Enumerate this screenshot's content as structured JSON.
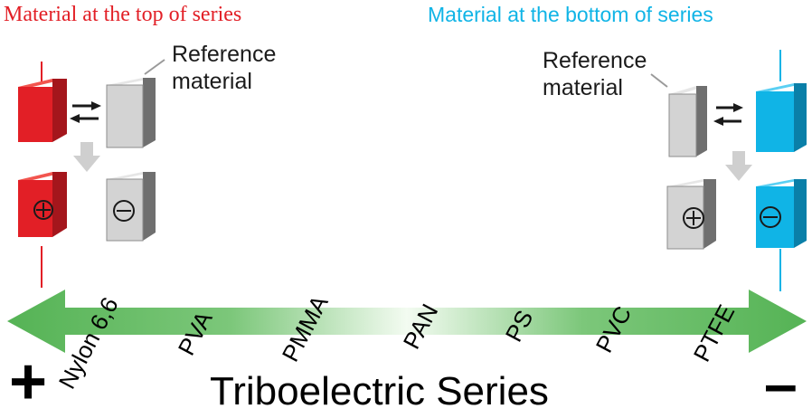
{
  "top_title": "Material at the top of series",
  "bottom_title": "Material at the bottom of series",
  "reference_left": [
    "Reference",
    "material"
  ],
  "reference_right": [
    "Reference",
    "material"
  ],
  "materials": [
    "Nylon 6,6",
    "PVA",
    "PMMA",
    "PAN",
    "PS",
    "PVC",
    "PTFE"
  ],
  "series_title": "Triboelectric Series",
  "positive_sign": "+",
  "negative_sign": "–",
  "colors": {
    "top_material": "#e21f26",
    "bottom_material": "#10b4e6",
    "reference_material": "#c9c9c9",
    "arrow_green": "#5cb85c"
  }
}
